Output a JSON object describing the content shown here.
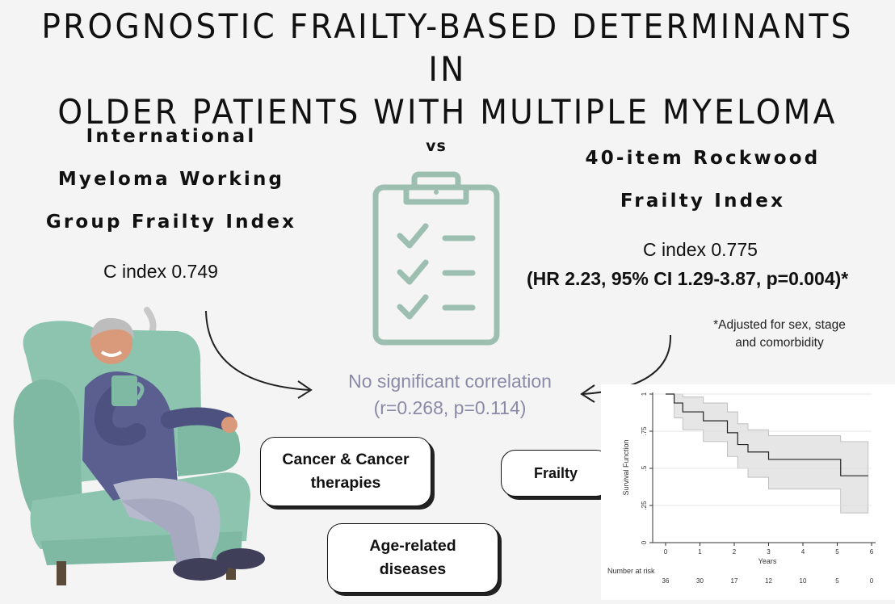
{
  "title": {
    "line1": "PROGNOSTIC FRAILTY-BASED DETERMINANTS IN",
    "line2": "OLDER PATIENTS WITH MULTIPLE MYELOMA"
  },
  "left_index": {
    "line1": "International",
    "line2": "Myeloma Working",
    "line3": "Group Frailty Index",
    "c_index": "C index 0.749"
  },
  "vs_label": "vs",
  "right_index": {
    "line1": "40-item Rockwood",
    "line2": "Frailty Index",
    "c_index": "C index 0.775",
    "hr": "(HR 2.23, 95% CI 1.29-3.87, p=0.004)*",
    "footnote_line1": "*Adjusted for sex, stage",
    "footnote_line2": "and comorbidity"
  },
  "correlation": {
    "line1": "No significant correlation",
    "line2": "(r=0.268, p=0.114)"
  },
  "boxes": {
    "cancer_line1": "Cancer & Cancer",
    "cancer_line2": "therapies",
    "frailty": "Frailty",
    "age_line1": "Age-related",
    "age_line2": "diseases"
  },
  "icons": [
    "clipboard-checklist-icon",
    "curved-arrow-icon",
    "elderly-man-armchair-illustration"
  ],
  "colors": {
    "clipboard": "#9dbfb1",
    "correlation_text": "#8a8aa8",
    "chair": "#8cc4b0",
    "clothes": "#5b5f8f"
  },
  "chart_data": {
    "type": "line",
    "subtype": "kaplan-meier",
    "title": "",
    "xlabel": "Years",
    "ylabel": "Survival Function",
    "xlim": [
      0,
      6
    ],
    "ylim": [
      0,
      1
    ],
    "x_ticks": [
      "0",
      "1",
      "2",
      "3",
      "4",
      "5",
      "6"
    ],
    "y_ticks": [
      "0",
      ".25",
      ".5",
      ".75",
      "1"
    ],
    "series": [
      {
        "x": [
          0,
          0.25,
          0.5,
          1.1,
          1.8,
          2.1,
          2.4,
          3.0,
          5.1,
          5.9
        ],
        "y": [
          1.0,
          0.94,
          0.88,
          0.82,
          0.74,
          0.66,
          0.61,
          0.56,
          0.45,
          0.45
        ]
      }
    ],
    "ci_band": {
      "x": [
        0,
        0.25,
        0.5,
        1.1,
        1.8,
        2.1,
        2.4,
        3.0,
        5.1,
        5.9
      ],
      "upper": [
        1.0,
        1.0,
        0.98,
        0.94,
        0.88,
        0.8,
        0.76,
        0.72,
        0.68,
        0.68
      ],
      "lower": [
        1.0,
        0.84,
        0.76,
        0.68,
        0.58,
        0.5,
        0.44,
        0.36,
        0.2,
        0.2
      ]
    },
    "grid": true,
    "risk_table": {
      "label": "Number at risk",
      "values": [
        "36",
        "30",
        "17",
        "12",
        "10",
        "5",
        "0"
      ]
    }
  }
}
